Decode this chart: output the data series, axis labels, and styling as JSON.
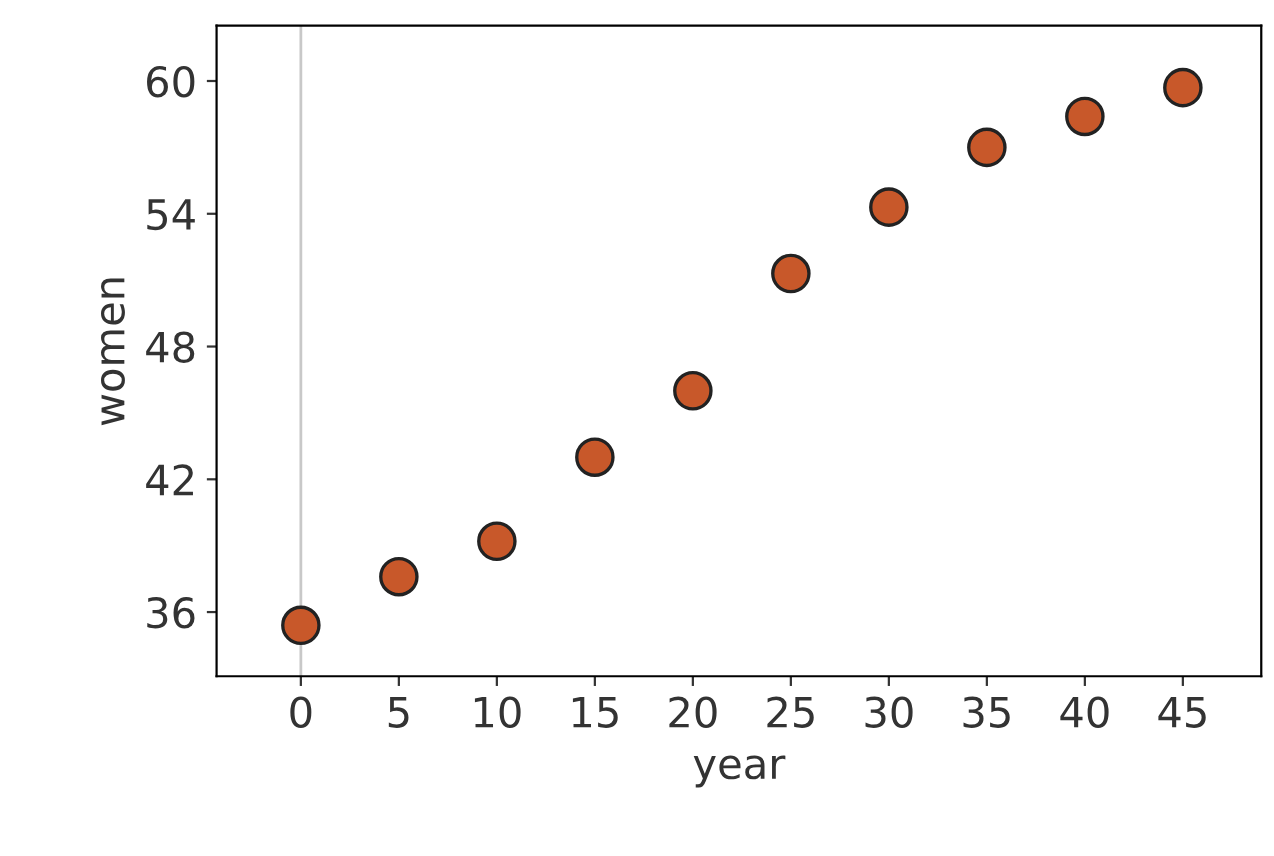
{
  "chart_data": {
    "type": "scatter",
    "xlabel": "year",
    "ylabel": "women",
    "x": [
      0,
      5,
      10,
      15,
      20,
      25,
      30,
      35,
      40,
      45
    ],
    "series": [
      {
        "color": "#c8582a",
        "values": [
          35.4,
          37.6,
          39.2,
          43.0,
          46.0,
          51.3,
          54.3,
          57.0,
          58.4,
          59.7
        ]
      }
    ],
    "xlim": [
      -4.3,
      49
    ],
    "xticks": [
      0,
      5,
      10,
      15,
      20,
      25,
      30,
      35,
      40,
      45
    ],
    "ylim": [
      33.1,
      62.5
    ],
    "yticks": [
      36,
      42,
      48,
      54,
      60
    ],
    "ref_lines": [
      {
        "axis": "x",
        "value": 0,
        "color": "#c8c8c8",
        "line_style": "solid"
      }
    ],
    "marker": "circle",
    "grid": false,
    "legend": false
  }
}
